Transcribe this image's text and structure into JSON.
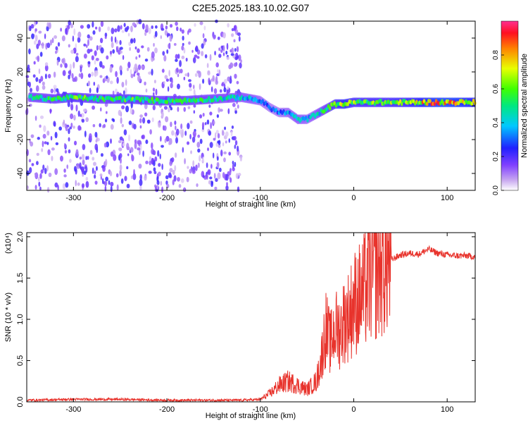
{
  "figure": {
    "title": "C2E5.2025.183.10.02.G07"
  },
  "colors": {
    "snr_line": "#e8332c",
    "axis": "#000000"
  },
  "chart_data": [
    {
      "type": "heatmap",
      "xlabel": "Height of straight line (km)",
      "ylabel": "Frequency (Hz)",
      "xlim": [
        -350,
        130
      ],
      "ylim": [
        -50,
        50
      ],
      "xticks": [
        -300,
        -200,
        -100,
        0,
        100
      ],
      "yticks": [
        -40,
        -20,
        0,
        20,
        40
      ],
      "colormap": "rainbow",
      "colorbar": {
        "label": "Normalized spectral amplitude",
        "range": [
          0,
          1
        ],
        "ticks": [
          0.0,
          0.2,
          0.4,
          0.6,
          0.8
        ]
      },
      "signal_track": {
        "x": [
          -345,
          -320,
          -300,
          -270,
          -240,
          -210,
          -180,
          -150,
          -120,
          -110,
          -100,
          -90,
          -80,
          -70,
          -60,
          -50,
          -40,
          -30,
          -20,
          -10,
          0,
          20,
          40,
          60,
          80,
          100,
          130
        ],
        "freq": [
          5,
          4,
          5,
          4,
          4,
          3,
          3,
          4,
          5,
          4,
          3,
          -1,
          -4,
          -4,
          -8,
          -8,
          -5,
          -2,
          1,
          1,
          2,
          2,
          2,
          2,
          2,
          2,
          2
        ],
        "amplitude": [
          0.45,
          0.5,
          0.55,
          0.5,
          0.55,
          0.5,
          0.5,
          0.45,
          0.4,
          0.4,
          0.35,
          0.3,
          0.3,
          0.35,
          0.4,
          0.35,
          0.4,
          0.5,
          0.6,
          0.7,
          0.6,
          0.6,
          0.6,
          0.65,
          0.75,
          0.8,
          0.7
        ]
      },
      "noise_region_x": [
        -350,
        -120
      ]
    },
    {
      "type": "line",
      "xlabel": "Height of straight line (km)",
      "ylabel": "SNR (10 * v/v)",
      "yscale_label": "(x10⁴)",
      "xlim": [
        -350,
        130
      ],
      "ylim": [
        0,
        2.05
      ],
      "xticks": [
        -300,
        -200,
        -100,
        0,
        100
      ],
      "yticks": [
        0.0,
        0.5,
        1.0,
        1.5,
        2.0
      ],
      "series": [
        {
          "x": [
            -350,
            -300,
            -250,
            -200,
            -150,
            -120,
            -100,
            -90,
            -80,
            -70,
            -60,
            -50,
            -45,
            -40,
            -35,
            -30,
            -25,
            -20,
            -15,
            -10,
            -5,
            0,
            5,
            10,
            15,
            20,
            30,
            40,
            50,
            60,
            70,
            80,
            90,
            100,
            110,
            120,
            130
          ],
          "values": [
            0.02,
            0.03,
            0.03,
            0.02,
            0.02,
            0.02,
            0.03,
            0.1,
            0.2,
            0.25,
            0.2,
            0.15,
            0.2,
            0.25,
            0.5,
            0.9,
            0.7,
            0.9,
            0.85,
            1.0,
            1.05,
            1.2,
            1.25,
            1.3,
            1.45,
            1.55,
            1.65,
            1.72,
            1.78,
            1.8,
            1.79,
            1.85,
            1.8,
            1.78,
            1.77,
            1.77,
            1.76
          ]
        }
      ]
    }
  ]
}
